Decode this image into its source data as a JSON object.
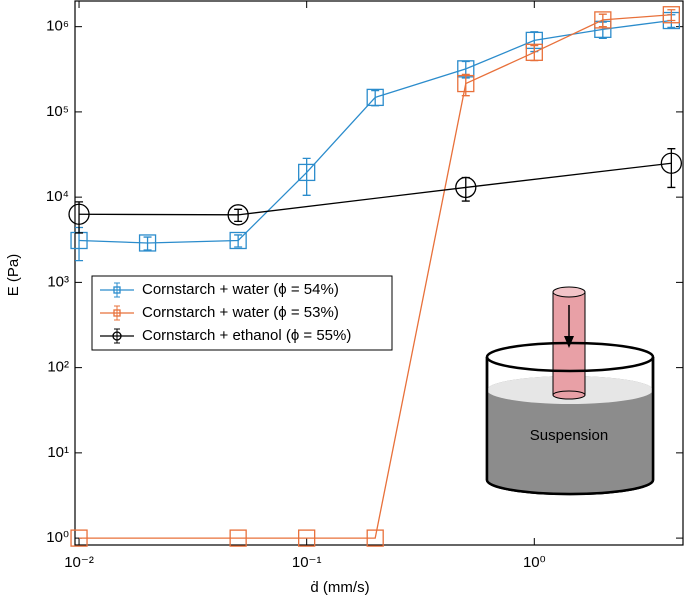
{
  "chart_data": {
    "type": "line",
    "log_x": true,
    "log_y": true,
    "xlabel": "ḋ (mm/s)",
    "ylabel": "E (Pa)",
    "xlim": [
      0.0096,
      4.5
    ],
    "ylim": [
      0.83,
      2000000
    ],
    "xticks": [
      {
        "value": 0.01,
        "label": "10⁻²"
      },
      {
        "value": 0.1,
        "label": "10⁻¹"
      },
      {
        "value": 1,
        "label": "10⁰"
      }
    ],
    "yticks": [
      {
        "value": 1,
        "label": "10⁰"
      },
      {
        "value": 10,
        "label": "10¹"
      },
      {
        "value": 100,
        "label": "10²"
      },
      {
        "value": 1000,
        "label": "10³"
      },
      {
        "value": 10000,
        "label": "10⁴"
      },
      {
        "value": 100000,
        "label": "10⁵"
      },
      {
        "value": 1000000,
        "label": "10⁶"
      }
    ],
    "legend_loc": "center left",
    "annotations": [
      "Suspension"
    ],
    "series": [
      {
        "name": "Cornstarch + water (ϕ = 54%)",
        "color": "#2b8ccc",
        "marker": "square",
        "x": [
          0.01,
          0.02,
          0.05,
          0.1,
          0.2,
          0.5,
          1,
          2,
          4
        ],
        "values": [
          3100,
          2900,
          3100,
          19500,
          148000,
          320000,
          690000,
          930000,
          1180000
        ],
        "errors": [
          1300,
          500,
          500,
          9000,
          30000,
          70000,
          180000,
          200000,
          200000
        ]
      },
      {
        "name": "Cornstarch + water (ϕ = 53%)",
        "color": "#e8703a",
        "marker": "square",
        "x": [
          0.01,
          0.05,
          0.1,
          0.2,
          0.5,
          1,
          2,
          4
        ],
        "values": [
          1,
          1,
          1,
          1,
          215000,
          500000,
          1200000,
          1380000
        ],
        "errors": [
          null,
          null,
          null,
          null,
          60000,
          100000,
          200000,
          200000
        ]
      },
      {
        "name": "Cornstarch + ethanol (ϕ = 55%)",
        "color": "#000000",
        "marker": "circle",
        "x": [
          0.01,
          0.05,
          0.5,
          4
        ],
        "values": [
          6300,
          6200,
          13000,
          25000
        ],
        "errors": [
          2500,
          1000,
          4000,
          12000
        ]
      }
    ]
  }
}
